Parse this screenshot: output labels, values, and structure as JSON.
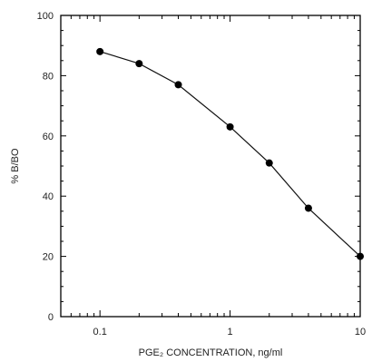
{
  "chart_data": {
    "type": "line",
    "xscale": "log",
    "xlabel": "PGE₂ CONCENTRATION, ng/ml",
    "ylabel": "% B/BO",
    "xlim": [
      0.05,
      10
    ],
    "ylim": [
      0,
      100
    ],
    "x_ticks": [
      0.1,
      1,
      10
    ],
    "x_tick_labels": [
      "0.1",
      "1",
      "10"
    ],
    "y_ticks": [
      0,
      20,
      40,
      60,
      80,
      100
    ],
    "y_tick_labels": [
      "0",
      "20",
      "40",
      "60",
      "80",
      "100"
    ],
    "grid": false,
    "series": [
      {
        "x": [
          0.1,
          0.2,
          0.4,
          1,
          2,
          4,
          10
        ],
        "y": [
          88,
          84,
          77,
          63,
          51,
          36,
          20
        ]
      }
    ]
  }
}
